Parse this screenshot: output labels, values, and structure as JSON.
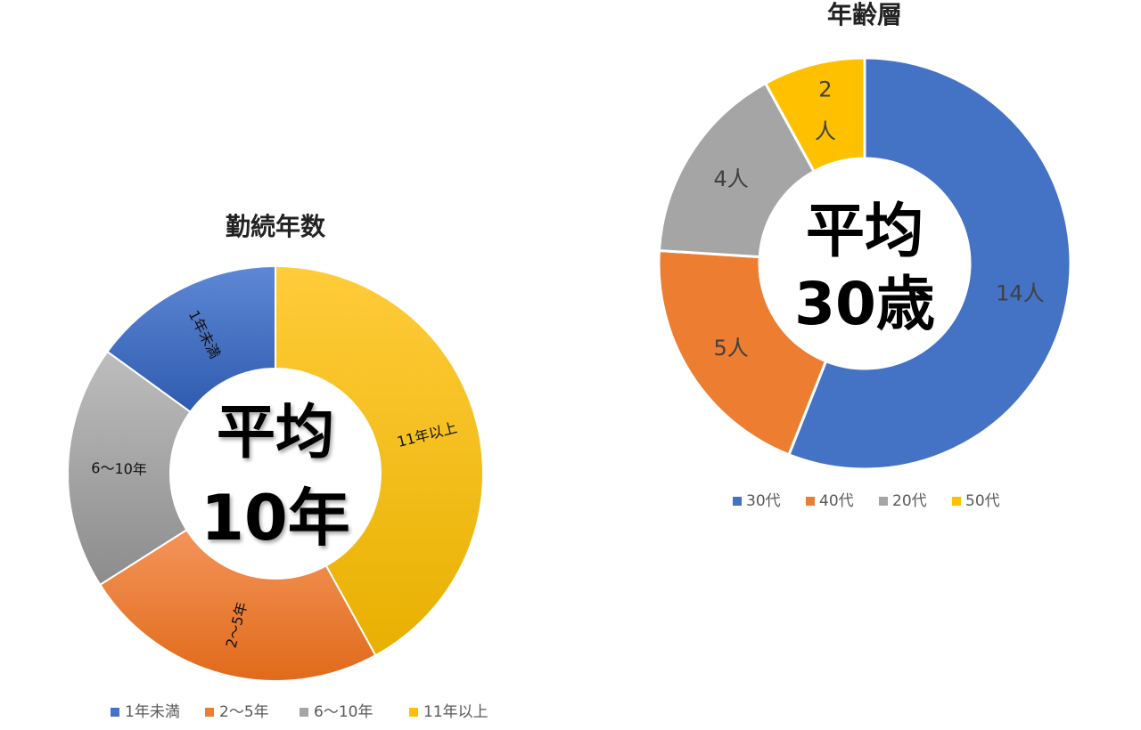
{
  "colors": {
    "blue": "#4472C4",
    "orange": "#ED7D31",
    "gray": "#A5A5A5",
    "gold": "#FFC000"
  },
  "chart_data": [
    {
      "type": "pie",
      "variant": "donut",
      "title": "勤続年数",
      "center_text": [
        "平均",
        "10年"
      ],
      "series": [
        {
          "label": "1年未満",
          "value": 15,
          "color": "#4472C4"
        },
        {
          "label": "2〜5年",
          "value": 24,
          "color": "#ED7D31"
        },
        {
          "label": "6〜10年",
          "value": 19,
          "color": "#A5A5A5"
        },
        {
          "label": "11年以上",
          "value": 42,
          "color": "#FFC000"
        }
      ],
      "legend": "bottom"
    },
    {
      "type": "pie",
      "variant": "donut",
      "title": "年齢層",
      "center_text": [
        "平均",
        "30歳"
      ],
      "series": [
        {
          "label": "30代",
          "value": 14,
          "data_label": "14人",
          "color": "#4472C4"
        },
        {
          "label": "40代",
          "value": 5,
          "data_label": "5人",
          "color": "#ED7D31"
        },
        {
          "label": "20代",
          "value": 4,
          "data_label": "4人",
          "color": "#A5A5A5"
        },
        {
          "label": "50代",
          "value": 2,
          "data_label": [
            "2",
            "人"
          ],
          "color": "#FFC000"
        }
      ],
      "legend": "bottom"
    }
  ]
}
